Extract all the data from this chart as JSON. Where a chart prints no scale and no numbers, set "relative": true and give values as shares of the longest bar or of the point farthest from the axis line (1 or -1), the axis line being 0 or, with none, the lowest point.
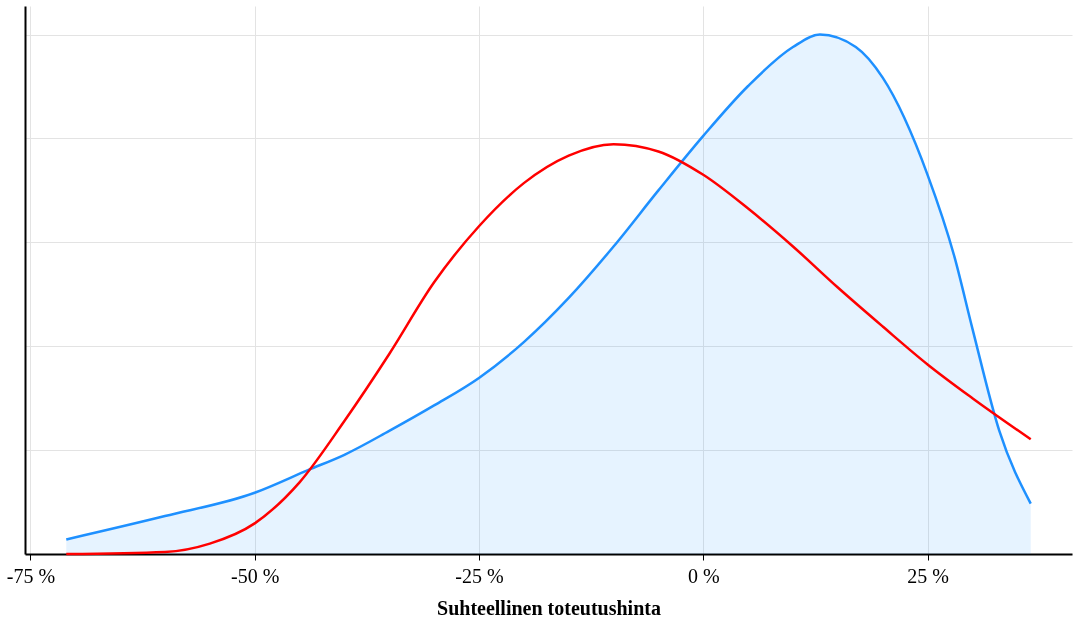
{
  "chart_data": {
    "type": "line",
    "xlabel": "Suhteellinen toteutushinta",
    "relative": true,
    "grid": true,
    "xlim": [
      -75.6,
      41.1
    ],
    "xticks": [
      {
        "value": -75,
        "label": "-75 %"
      },
      {
        "value": -50,
        "label": "-50 %"
      },
      {
        "value": -25,
        "label": "-25 %"
      },
      {
        "value": 0,
        "label": "0 %"
      },
      {
        "value": 25,
        "label": "25 %"
      }
    ],
    "series": [
      {
        "type": "area",
        "color": "#1e90ff",
        "x": [
          -71,
          -60,
          -50,
          -44,
          -40,
          -35,
          -30,
          -25,
          -20,
          -15,
          -10,
          -5,
          0,
          5,
          10,
          13,
          17,
          20,
          25,
          28,
          30,
          33,
          36.5
        ],
        "values": [
          0.028,
          0.073,
          0.118,
          0.162,
          0.191,
          0.237,
          0.286,
          0.339,
          0.408,
          0.493,
          0.592,
          0.7,
          0.805,
          0.901,
          0.976,
          1,
          0.976,
          0.917,
          0.73,
          0.572,
          0.434,
          0.237,
          0.097
        ]
      },
      {
        "color": "#ff0000",
        "x": [
          -71,
          -60,
          -55,
          -50,
          -45,
          -40,
          -35,
          -30,
          -25,
          -20,
          -15,
          -10,
          -5,
          0,
          5,
          10,
          15,
          20,
          25,
          30,
          36.5
        ],
        "values": [
          0,
          0.004,
          0.02,
          0.059,
          0.138,
          0.256,
          0.385,
          0.523,
          0.631,
          0.714,
          0.767,
          0.789,
          0.775,
          0.73,
          0.665,
          0.592,
          0.513,
          0.438,
          0.365,
          0.3,
          0.221
        ]
      }
    ]
  }
}
